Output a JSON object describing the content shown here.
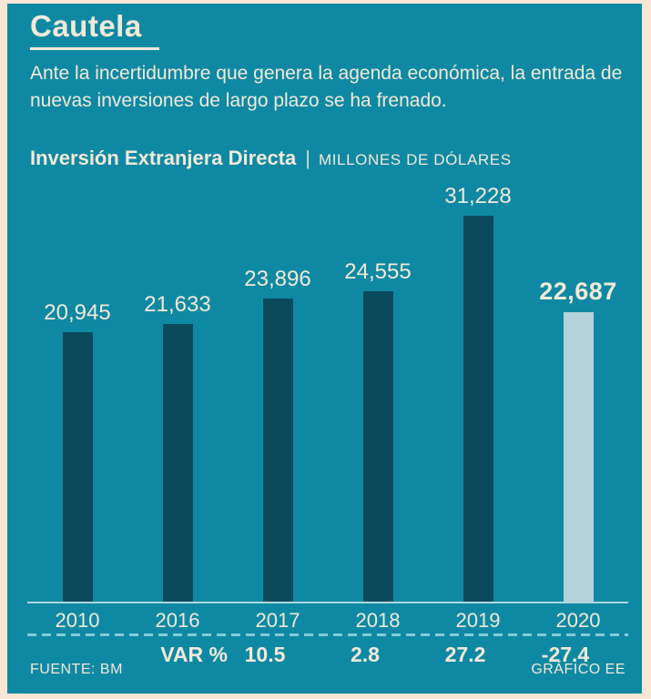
{
  "header": {
    "title": "Cautela",
    "subtitle": "Ante la incertidumbre que genera la agenda económica, la entrada de nuevas inversiones de largo plazo se ha frenado."
  },
  "chart_header": {
    "title": "Inversión Extranjera Directa",
    "divider": "|",
    "units": "MILLONES DE DÓLARES"
  },
  "chart_data": {
    "type": "bar",
    "title": "Inversión Extranjera Directa",
    "ylabel": "MILLONES DE DÓLARES",
    "categories": [
      "2010",
      "2016",
      "2017",
      "2018",
      "2019",
      "2020"
    ],
    "values": [
      20945,
      21633,
      23896,
      24555,
      31228,
      22687
    ],
    "value_labels": [
      "20,945",
      "21,633",
      "23,896",
      "24,555",
      "31,228",
      "22,687"
    ],
    "highlight_index": 5,
    "ylim": [
      0,
      32000
    ],
    "grid": false,
    "legend": false,
    "var_row": {
      "label": "VAR %",
      "values": [
        "",
        "",
        "10.5",
        "2.8",
        "27.2",
        "-27.4"
      ]
    },
    "colors": {
      "background": "#0f89a3",
      "bar": "#0b4a5d",
      "highlight_bar": "#b6d2d9",
      "text": "#f2e9d8",
      "axis_line": "#afd8de",
      "dashed_line": "#85cbda",
      "frame": "#f8e7d5"
    }
  },
  "footer": {
    "source": "FUENTE: BM",
    "credit": "GRÁFICO EE"
  }
}
